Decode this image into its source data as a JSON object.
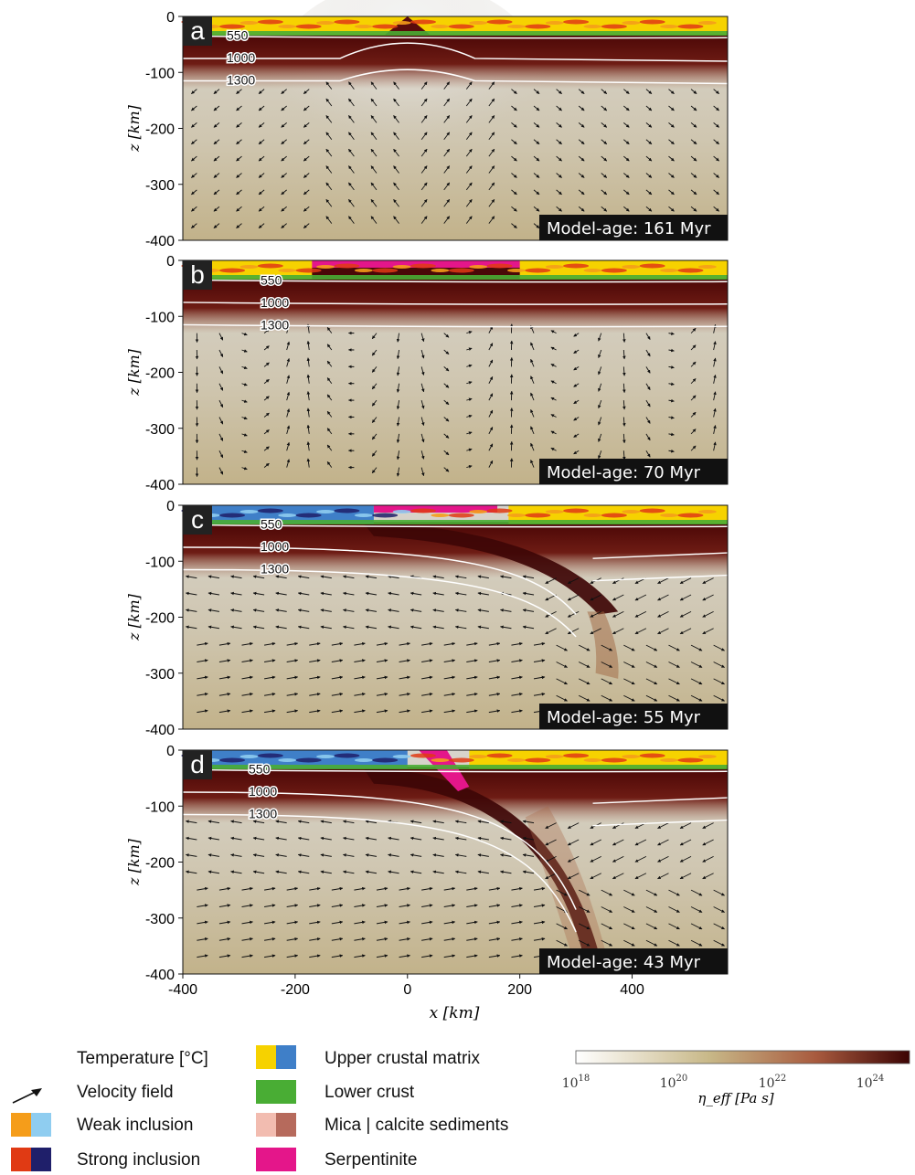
{
  "chart_data": {
    "type": "heatmap",
    "xlabel": "x [km]",
    "ylabel": "z [km]",
    "xlim": [
      -400,
      570
    ],
    "ylim": [
      -400,
      0
    ],
    "x_ticks": [
      "-400",
      "-200",
      "0",
      "200",
      "400"
    ],
    "y_ticks": [
      "0",
      "-100",
      "-200",
      "-300",
      "-400"
    ],
    "isotherm_labels": [
      "550",
      "1000",
      "1300"
    ],
    "panels": [
      {
        "letter": "a",
        "model_age_label": "Model-age: 161 Myr",
        "model_age_myr": 161
      },
      {
        "letter": "b",
        "model_age_label": "Model-age: 70 Myr",
        "model_age_myr": 70
      },
      {
        "letter": "c",
        "model_age_label": "Model-age: 55 Myr",
        "model_age_myr": 55
      },
      {
        "letter": "d",
        "model_age_label": "Model-age: 43 Myr",
        "model_age_myr": 43
      }
    ],
    "colorbar": {
      "label": "η_eff [Pa s]",
      "tick_labels": [
        "10^18",
        "10^20",
        "10^22",
        "10^24"
      ],
      "colors": [
        "#ffffff",
        "#c8b888",
        "#a85a3e",
        "#3c0404"
      ]
    }
  },
  "legend": {
    "temperature": "Temperature [°C]",
    "velocity": "Velocity field",
    "weak": "Weak inclusion",
    "strong": "Strong inclusion",
    "upper_crust": "Upper crustal matrix",
    "lower_crust": "Lower crust",
    "sediments": "Mica | calcite sediments",
    "serpentinite": "Serpentinite"
  },
  "colors": {
    "upper_crust_a": "#f6d200",
    "upper_crust_b": "#3f7fc8",
    "lower_crust": "#49ad34",
    "weak_a": "#f59d1a",
    "weak_b": "#8fcdf0",
    "strong_a": "#e03a14",
    "strong_b": "#1f1f6a",
    "mica": "#f2bcb0",
    "calcite": "#b66a5c",
    "serpentinite": "#e4168a",
    "dark_lith": "#4a0808"
  }
}
